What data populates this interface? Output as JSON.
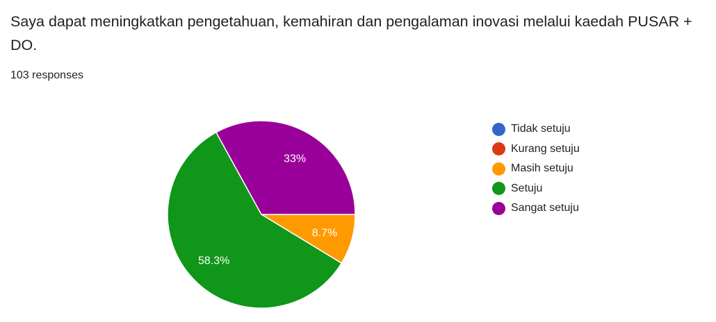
{
  "question": "Saya dapat meningkatkan pengetahuan, kemahiran dan pengalaman inovasi melalui kaedah PUSAR + DO.",
  "responses": "103 responses",
  "chart_data": {
    "type": "pie",
    "categories": [
      "Tidak setuju",
      "Kurang setuju",
      "Masih setuju",
      "Setuju",
      "Sangat setuju"
    ],
    "values": [
      0,
      0,
      8.7,
      58.3,
      33
    ],
    "labels": [
      "",
      "",
      "8.7%",
      "58.3%",
      "33%"
    ],
    "colors": [
      "#3366cc",
      "#dc3912",
      "#ff9900",
      "#109618",
      "#990099"
    ],
    "legend_position": "right"
  }
}
